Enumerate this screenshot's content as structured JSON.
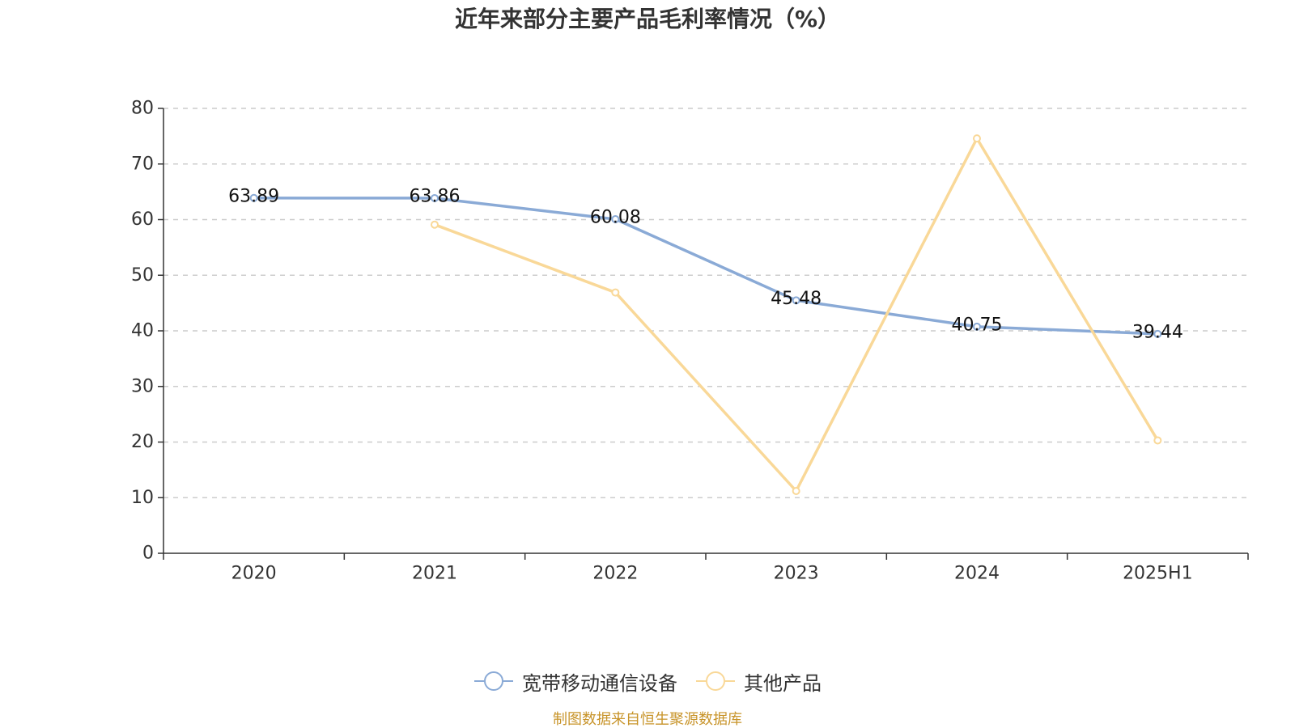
{
  "chart_data": {
    "type": "line",
    "title": "近年来部分主要产品毛利率情况（%）",
    "categories": [
      "2020",
      "2021",
      "2022",
      "2023",
      "2024",
      "2025H1"
    ],
    "ylim": [
      0,
      80
    ],
    "yticks": [
      0,
      10,
      20,
      30,
      40,
      50,
      60,
      70,
      80
    ],
    "grid": true,
    "legend_position": "bottom",
    "series": [
      {
        "name": "宽带移动通信设备",
        "color": "#8aaad6",
        "values": [
          63.89,
          63.86,
          60.08,
          45.48,
          40.75,
          39.44
        ],
        "data_labels": [
          "63.89",
          "63.86",
          "60.08",
          "45.48",
          "40.75",
          "39.44"
        ]
      },
      {
        "name": "其他产品",
        "color": "#f9d898",
        "values": [
          null,
          59.1,
          46.9,
          11.2,
          74.6,
          20.3
        ]
      }
    ]
  },
  "source_note": "制图数据来自恒生聚源数据库",
  "colors": {
    "axis": "#333333",
    "grid": "#cccccc",
    "tick_text": "#333333",
    "label_text": "#111111",
    "source_note": "#c8942a"
  }
}
